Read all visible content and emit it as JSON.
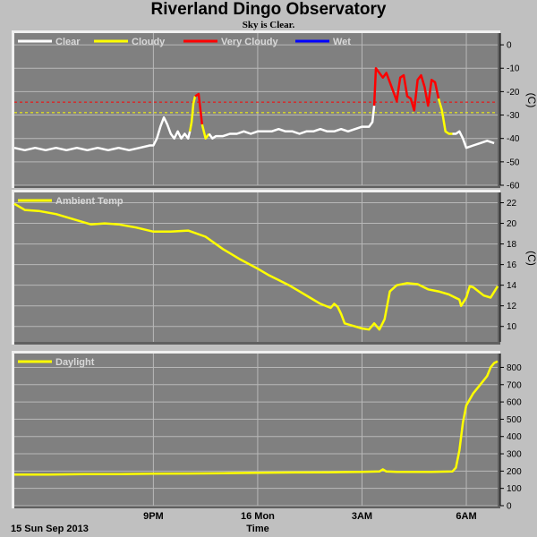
{
  "header": {
    "title": "Riverland Dingo Observatory",
    "subtitle": "Sky is Clear."
  },
  "footer": {
    "date_label": "15 Sun Sep 2013",
    "xlabel": "Time"
  },
  "colors": {
    "background": "#c0c0c0",
    "plot_bg": "#808080",
    "grid": "#b8b8b8",
    "clear": "#ffffff",
    "cloudy": "#ffff00",
    "very_cloudy": "#ff0000",
    "wet": "#0000ff"
  },
  "chart_data": [
    {
      "type": "line",
      "name": "sky",
      "legend": [
        "Clear",
        "Cloudy",
        "Very Cloudy",
        "Wet"
      ],
      "legend_placement": "top-left",
      "ylabel": "(C)",
      "ylim": [
        -60,
        5
      ],
      "yticks": [
        0,
        -10,
        -20,
        -30,
        -40,
        -50,
        -60
      ],
      "grid": true,
      "xlim": [
        17.0,
        30.9
      ],
      "x_ticks": [
        {
          "x": 21,
          "label": "9PM"
        },
        {
          "x": 24,
          "label": "16 Mon"
        },
        {
          "x": 27,
          "label": "3AM"
        },
        {
          "x": 30,
          "label": "6AM"
        }
      ],
      "thresholds": [
        {
          "value": -24.5,
          "color": "#ff0000"
        },
        {
          "value": -29,
          "color": "#ffff00"
        }
      ],
      "x": [
        17.0,
        17.3,
        17.6,
        17.9,
        18.2,
        18.5,
        18.8,
        19.1,
        19.4,
        19.7,
        20.0,
        20.3,
        20.6,
        20.9,
        21.0,
        21.1,
        21.2,
        21.3,
        21.4,
        21.5,
        21.6,
        21.7,
        21.8,
        21.9,
        22.0,
        22.05,
        22.1,
        22.15,
        22.2,
        22.3,
        22.4,
        22.5,
        22.6,
        22.7,
        22.8,
        23.0,
        23.2,
        23.4,
        23.6,
        23.8,
        24.0,
        24.2,
        24.4,
        24.6,
        24.8,
        25.0,
        25.2,
        25.4,
        25.6,
        25.8,
        26.0,
        26.2,
        26.4,
        26.6,
        26.8,
        27.0,
        27.2,
        27.3,
        27.35,
        27.4,
        27.5,
        27.6,
        27.7,
        27.8,
        27.9,
        28.0,
        28.1,
        28.2,
        28.3,
        28.4,
        28.5,
        28.6,
        28.7,
        28.8,
        28.9,
        29.0,
        29.1,
        29.2,
        29.3,
        29.4,
        29.5,
        29.6,
        29.7,
        29.8,
        29.9,
        30.0,
        30.2,
        30.4,
        30.6,
        30.8
      ],
      "values": [
        -44,
        -45,
        -44,
        -45,
        -44,
        -45,
        -44,
        -45,
        -44,
        -45,
        -44,
        -45,
        -44,
        -43,
        -43,
        -40,
        -35,
        -31,
        -34,
        -38,
        -40,
        -37,
        -40,
        -38,
        -40,
        -37,
        -33,
        -25,
        -22,
        -21,
        -34,
        -40,
        -38,
        -40,
        -39,
        -39,
        -38,
        -38,
        -37,
        -38,
        -37,
        -37,
        -37,
        -36,
        -37,
        -37,
        -38,
        -37,
        -37,
        -36,
        -37,
        -37,
        -36,
        -37,
        -36,
        -35,
        -35,
        -33,
        -26,
        -10,
        -12,
        -14,
        -12,
        -16,
        -20,
        -24,
        -14,
        -13,
        -22,
        -23,
        -28,
        -15,
        -13,
        -18,
        -26,
        -15,
        -16,
        -23,
        -28,
        -37,
        -38,
        -38,
        -38,
        -37,
        -40,
        -44,
        -43,
        -42,
        -41,
        -42
      ],
      "segments": [
        {
          "from": 0,
          "to": 25,
          "state": "Clear"
        },
        {
          "from": 25,
          "to": 28,
          "state": "Cloudy"
        },
        {
          "from": 28,
          "to": 30,
          "state": "Very Cloudy"
        },
        {
          "from": 30,
          "to": 32,
          "state": "Cloudy"
        },
        {
          "from": 32,
          "to": 58,
          "state": "Clear"
        },
        {
          "from": 58,
          "to": 77,
          "state": "Very Cloudy"
        },
        {
          "from": 77,
          "to": 81,
          "state": "Cloudy"
        },
        {
          "from": 81,
          "to": 89,
          "state": "Clear"
        }
      ]
    },
    {
      "type": "line",
      "name": "ambient",
      "legend": [
        "Ambient Temp"
      ],
      "legend_placement": "top-left",
      "ylabel": "(C)",
      "ylim": [
        8.5,
        23
      ],
      "yticks": [
        22,
        20,
        18,
        16,
        14,
        12,
        10
      ],
      "grid": true,
      "xlim": [
        17.0,
        30.9
      ],
      "x": [
        17.0,
        17.3,
        17.7,
        18.2,
        18.7,
        19.2,
        19.6,
        20.0,
        20.5,
        21.0,
        21.5,
        22.0,
        22.5,
        23.0,
        23.5,
        24.0,
        24.3,
        24.6,
        24.9,
        25.2,
        25.5,
        25.8,
        26.1,
        26.2,
        26.3,
        26.4,
        26.5,
        26.7,
        27.0,
        27.2,
        27.35,
        27.5,
        27.65,
        27.8,
        28.0,
        28.3,
        28.6,
        28.9,
        29.2,
        29.5,
        29.8,
        29.85,
        30.0,
        30.1,
        30.2,
        30.5,
        30.7,
        30.9
      ],
      "values": [
        21.9,
        21.3,
        21.2,
        20.9,
        20.4,
        19.9,
        20.0,
        19.9,
        19.6,
        19.2,
        19.2,
        19.3,
        18.7,
        17.5,
        16.5,
        15.6,
        15.0,
        14.5,
        14.0,
        13.4,
        12.8,
        12.2,
        11.8,
        12.2,
        11.9,
        11.2,
        10.3,
        10.1,
        9.8,
        9.7,
        10.3,
        9.7,
        10.7,
        13.4,
        14.0,
        14.2,
        14.1,
        13.6,
        13.4,
        13.1,
        12.6,
        12.0,
        12.8,
        13.9,
        13.8,
        13.0,
        12.8,
        13.9
      ],
      "segments": [
        {
          "from": 0,
          "to": 47,
          "state": "Ambient Temp"
        }
      ]
    },
    {
      "type": "line",
      "name": "daylight",
      "legend": [
        "Daylight"
      ],
      "legend_placement": "top-left",
      "ylabel": "",
      "ylim": [
        0,
        880
      ],
      "yticks": [
        800,
        700,
        600,
        500,
        400,
        300,
        200,
        100,
        0
      ],
      "grid": true,
      "xlim": [
        17.0,
        30.9
      ],
      "x": [
        17.0,
        18.0,
        19.0,
        20.0,
        21.0,
        22.0,
        23.0,
        24.0,
        25.0,
        26.0,
        27.0,
        27.5,
        27.6,
        27.7,
        28.0,
        29.0,
        29.6,
        29.7,
        29.8,
        29.9,
        30.0,
        30.2,
        30.4,
        30.6,
        30.7,
        30.8,
        30.9
      ],
      "values": [
        180,
        180,
        182,
        182,
        185,
        186,
        188,
        190,
        192,
        193,
        195,
        198,
        210,
        198,
        195,
        195,
        198,
        220,
        320,
        480,
        580,
        650,
        700,
        750,
        800,
        825,
        835
      ],
      "segments": [
        {
          "from": 0,
          "to": 26,
          "state": "Daylight"
        }
      ]
    }
  ]
}
